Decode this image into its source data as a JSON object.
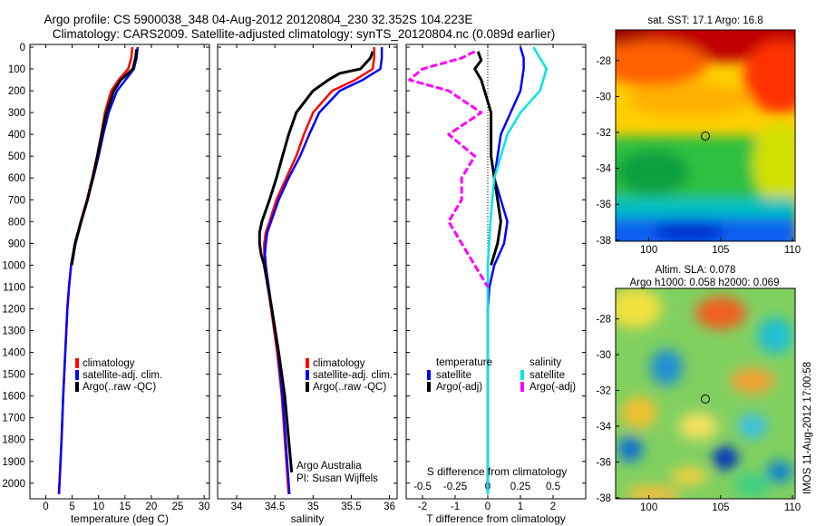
{
  "header": {
    "line1": "Argo profile: CS 5900038_348 04-Aug-2012 20120804_230 32.352S 104.223E",
    "line2": "Climatology: CARS2009. Satellite-adjusted climatology: synTS_20120804.nc (0.089d earlier)"
  },
  "colors": {
    "climatology": "#ff0000",
    "satellite": "#0000ff",
    "argo": "#000000",
    "salinity_sat": "#00e5e5",
    "salinity_argo": "#ff00ff"
  },
  "chart_data": [
    {
      "type": "line",
      "id": "temperature",
      "xlabel": "temperature (deg C)",
      "ylabel": "",
      "xlim": [
        -3,
        31
      ],
      "ylim": [
        2100,
        0
      ],
      "xticks": [
        0,
        5,
        10,
        15,
        20,
        25,
        30
      ],
      "yticks": [
        0,
        100,
        200,
        300,
        400,
        500,
        600,
        700,
        800,
        900,
        1000,
        1100,
        1200,
        1300,
        1400,
        1500,
        1600,
        1700,
        1800,
        1900,
        2000
      ],
      "legend": [
        "climatology",
        "satellite-adj. clim.",
        "Argo(..raw -QC)"
      ],
      "series": [
        {
          "name": "climatology",
          "depth": [
            0,
            50,
            100,
            150,
            200,
            300,
            400,
            500,
            600,
            700,
            800,
            900,
            1000,
            1100,
            1200,
            1400,
            1600,
            1800,
            2000,
            2050
          ],
          "values": [
            16.4,
            16.2,
            15.6,
            13.8,
            12.4,
            11.2,
            10.5,
            9.7,
            8.8,
            7.8,
            6.6,
            5.5,
            4.8,
            4.4,
            4.1,
            3.7,
            3.3,
            3.0,
            2.6,
            2.5
          ]
        },
        {
          "name": "satellite-adj. clim.",
          "depth": [
            0,
            50,
            100,
            150,
            200,
            300,
            400,
            500,
            600,
            700,
            800,
            900,
            1000,
            1100,
            1200,
            1400,
            1600,
            1800,
            2000,
            2050
          ],
          "values": [
            17.4,
            17.2,
            16.7,
            15.1,
            13.5,
            11.9,
            10.9,
            10.0,
            9.0,
            7.9,
            6.7,
            5.5,
            4.8,
            4.4,
            4.1,
            3.7,
            3.3,
            3.0,
            2.6,
            2.5
          ]
        },
        {
          "name": "Argo(..raw -QC)",
          "depth": [
            10,
            50,
            100,
            150,
            200,
            300,
            400,
            500,
            600,
            700,
            800,
            900,
            1000
          ],
          "values": [
            17.2,
            17.0,
            16.5,
            14.2,
            12.9,
            11.5,
            10.6,
            9.8,
            8.9,
            7.9,
            6.7,
            5.6,
            4.9
          ]
        }
      ]
    },
    {
      "type": "line",
      "id": "salinity",
      "xlabel": "salinity",
      "ylabel": "",
      "xlim": [
        33.75,
        36.1
      ],
      "ylim": [
        2100,
        0
      ],
      "xticks": [
        34,
        34.5,
        35,
        35.5,
        36
      ],
      "legend": [
        "climatology",
        "satellite-adj. clim.",
        "Argo(..raw -QC)"
      ],
      "annotation": [
        "Argo Australia",
        "PI: Susan Wijffels"
      ],
      "series": [
        {
          "name": "climatology",
          "depth": [
            0,
            50,
            100,
            150,
            200,
            300,
            400,
            500,
            600,
            700,
            800,
            850,
            900,
            950,
            1000,
            1200,
            1400,
            1600,
            1800,
            2000,
            2050
          ],
          "values": [
            35.8,
            35.8,
            35.78,
            35.55,
            35.25,
            35.0,
            34.88,
            34.78,
            34.65,
            34.52,
            34.43,
            34.38,
            34.36,
            34.36,
            34.37,
            34.45,
            34.53,
            34.59,
            34.63,
            34.67,
            34.68
          ]
        },
        {
          "name": "satellite-adj. clim.",
          "depth": [
            0,
            50,
            100,
            150,
            200,
            300,
            400,
            500,
            600,
            700,
            800,
            850,
            900,
            950,
            1000,
            1200,
            1400,
            1600,
            1800,
            2000,
            2050
          ],
          "values": [
            35.9,
            35.9,
            35.88,
            35.65,
            35.35,
            35.08,
            34.95,
            34.83,
            34.68,
            34.55,
            34.45,
            34.4,
            34.38,
            34.37,
            34.38,
            34.46,
            34.54,
            34.6,
            34.64,
            34.68,
            34.69
          ]
        },
        {
          "name": "Argo(..raw -QC)",
          "depth": [
            20,
            50,
            100,
            120,
            150,
            200,
            300,
            400,
            500,
            600,
            700,
            800,
            850,
            900,
            950,
            1000,
            1200,
            1400,
            1600,
            1800,
            1950
          ],
          "values": [
            35.78,
            35.75,
            35.62,
            35.35,
            35.2,
            35.0,
            34.78,
            34.68,
            34.6,
            34.52,
            34.43,
            34.33,
            34.3,
            34.3,
            34.32,
            34.36,
            34.46,
            34.55,
            34.63,
            34.68,
            34.72
          ]
        }
      ]
    },
    {
      "type": "line",
      "id": "difference",
      "xlabel": "T difference from climatology",
      "xlabel_top": "S difference from climatology",
      "xlim": [
        -2.5,
        3
      ],
      "ylim": [
        2100,
        0
      ],
      "xticks": [
        -2,
        -1,
        0,
        1,
        2
      ],
      "xticks_top": [
        "-0.5",
        "-0.25",
        "0",
        "0.25",
        "0.5"
      ],
      "legend_temperature_title": "temperature",
      "legend_salinity_title": "salinity",
      "legend": [
        "satellite",
        "Argo(-adj)",
        "satellite",
        "Argo(-adj)"
      ],
      "series": [
        {
          "name": "temperature satellite",
          "depth": [
            0,
            50,
            100,
            200,
            300,
            400,
            500,
            600,
            700,
            800,
            900,
            1000,
            1100,
            1200,
            1400,
            1600,
            1800,
            2000,
            2050
          ],
          "values": [
            1.0,
            1.1,
            1.1,
            1.0,
            0.7,
            0.4,
            0.3,
            0.2,
            0.4,
            0.6,
            0.5,
            0.2,
            0.05,
            0.0,
            0.0,
            0.0,
            0.0,
            0.0,
            0.0
          ]
        },
        {
          "name": "temperature Argo(-adj)",
          "depth": [
            20,
            60,
            100,
            150,
            200,
            300,
            400,
            500,
            600,
            700,
            800,
            900,
            1000
          ],
          "values": [
            -0.3,
            -0.2,
            -0.4,
            -0.2,
            -0.1,
            0.1,
            0.1,
            0.1,
            0.2,
            0.3,
            0.4,
            0.3,
            0.1
          ]
        },
        {
          "name": "salinity satellite",
          "depth": [
            0,
            50,
            100,
            200,
            300,
            400,
            500,
            600,
            800,
            1000,
            1200,
            1400,
            1600,
            1800,
            2000,
            2050
          ],
          "values": [
            0.35,
            0.4,
            0.45,
            0.4,
            0.25,
            0.15,
            0.1,
            0.05,
            0.02,
            0.0,
            0.0,
            0.0,
            0.0,
            0.0,
            0.0,
            0.0
          ]
        },
        {
          "name": "salinity Argo(-adj)",
          "depth": [
            20,
            50,
            100,
            150,
            200,
            300,
            400,
            500,
            600,
            700,
            800,
            900,
            1000,
            1100
          ],
          "values": [
            -0.1,
            -0.2,
            -0.5,
            -0.6,
            -0.3,
            -0.05,
            -0.3,
            -0.1,
            -0.2,
            -0.2,
            -0.3,
            -0.2,
            -0.1,
            0.0
          ]
        }
      ]
    }
  ],
  "maps": {
    "sst": {
      "title": "sat. SST: 17.1  Argo: 16.8",
      "yticks": [
        "-28",
        "-30",
        "-32",
        "-34",
        "-36",
        "-38"
      ],
      "xticks": [
        "100",
        "105",
        "110"
      ]
    },
    "sla": {
      "title1": "Altim. SLA: 0.078",
      "title2": "Argo h1000: 0.058 h2000: 0.069",
      "yticks": [
        "-28",
        "-30",
        "-32",
        "-34",
        "-36",
        "-38"
      ],
      "xticks": [
        "100",
        "105",
        "110"
      ]
    }
  },
  "stamp": "IMOS 11-Aug-2012 17:00:58"
}
